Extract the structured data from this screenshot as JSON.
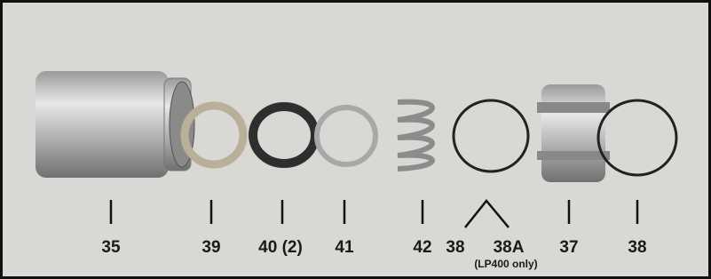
{
  "labels": [
    "35",
    "39",
    "40 (2)",
    "41",
    "42",
    "38",
    "38A",
    "37",
    "38"
  ],
  "note": "(LP400 only)"
}
